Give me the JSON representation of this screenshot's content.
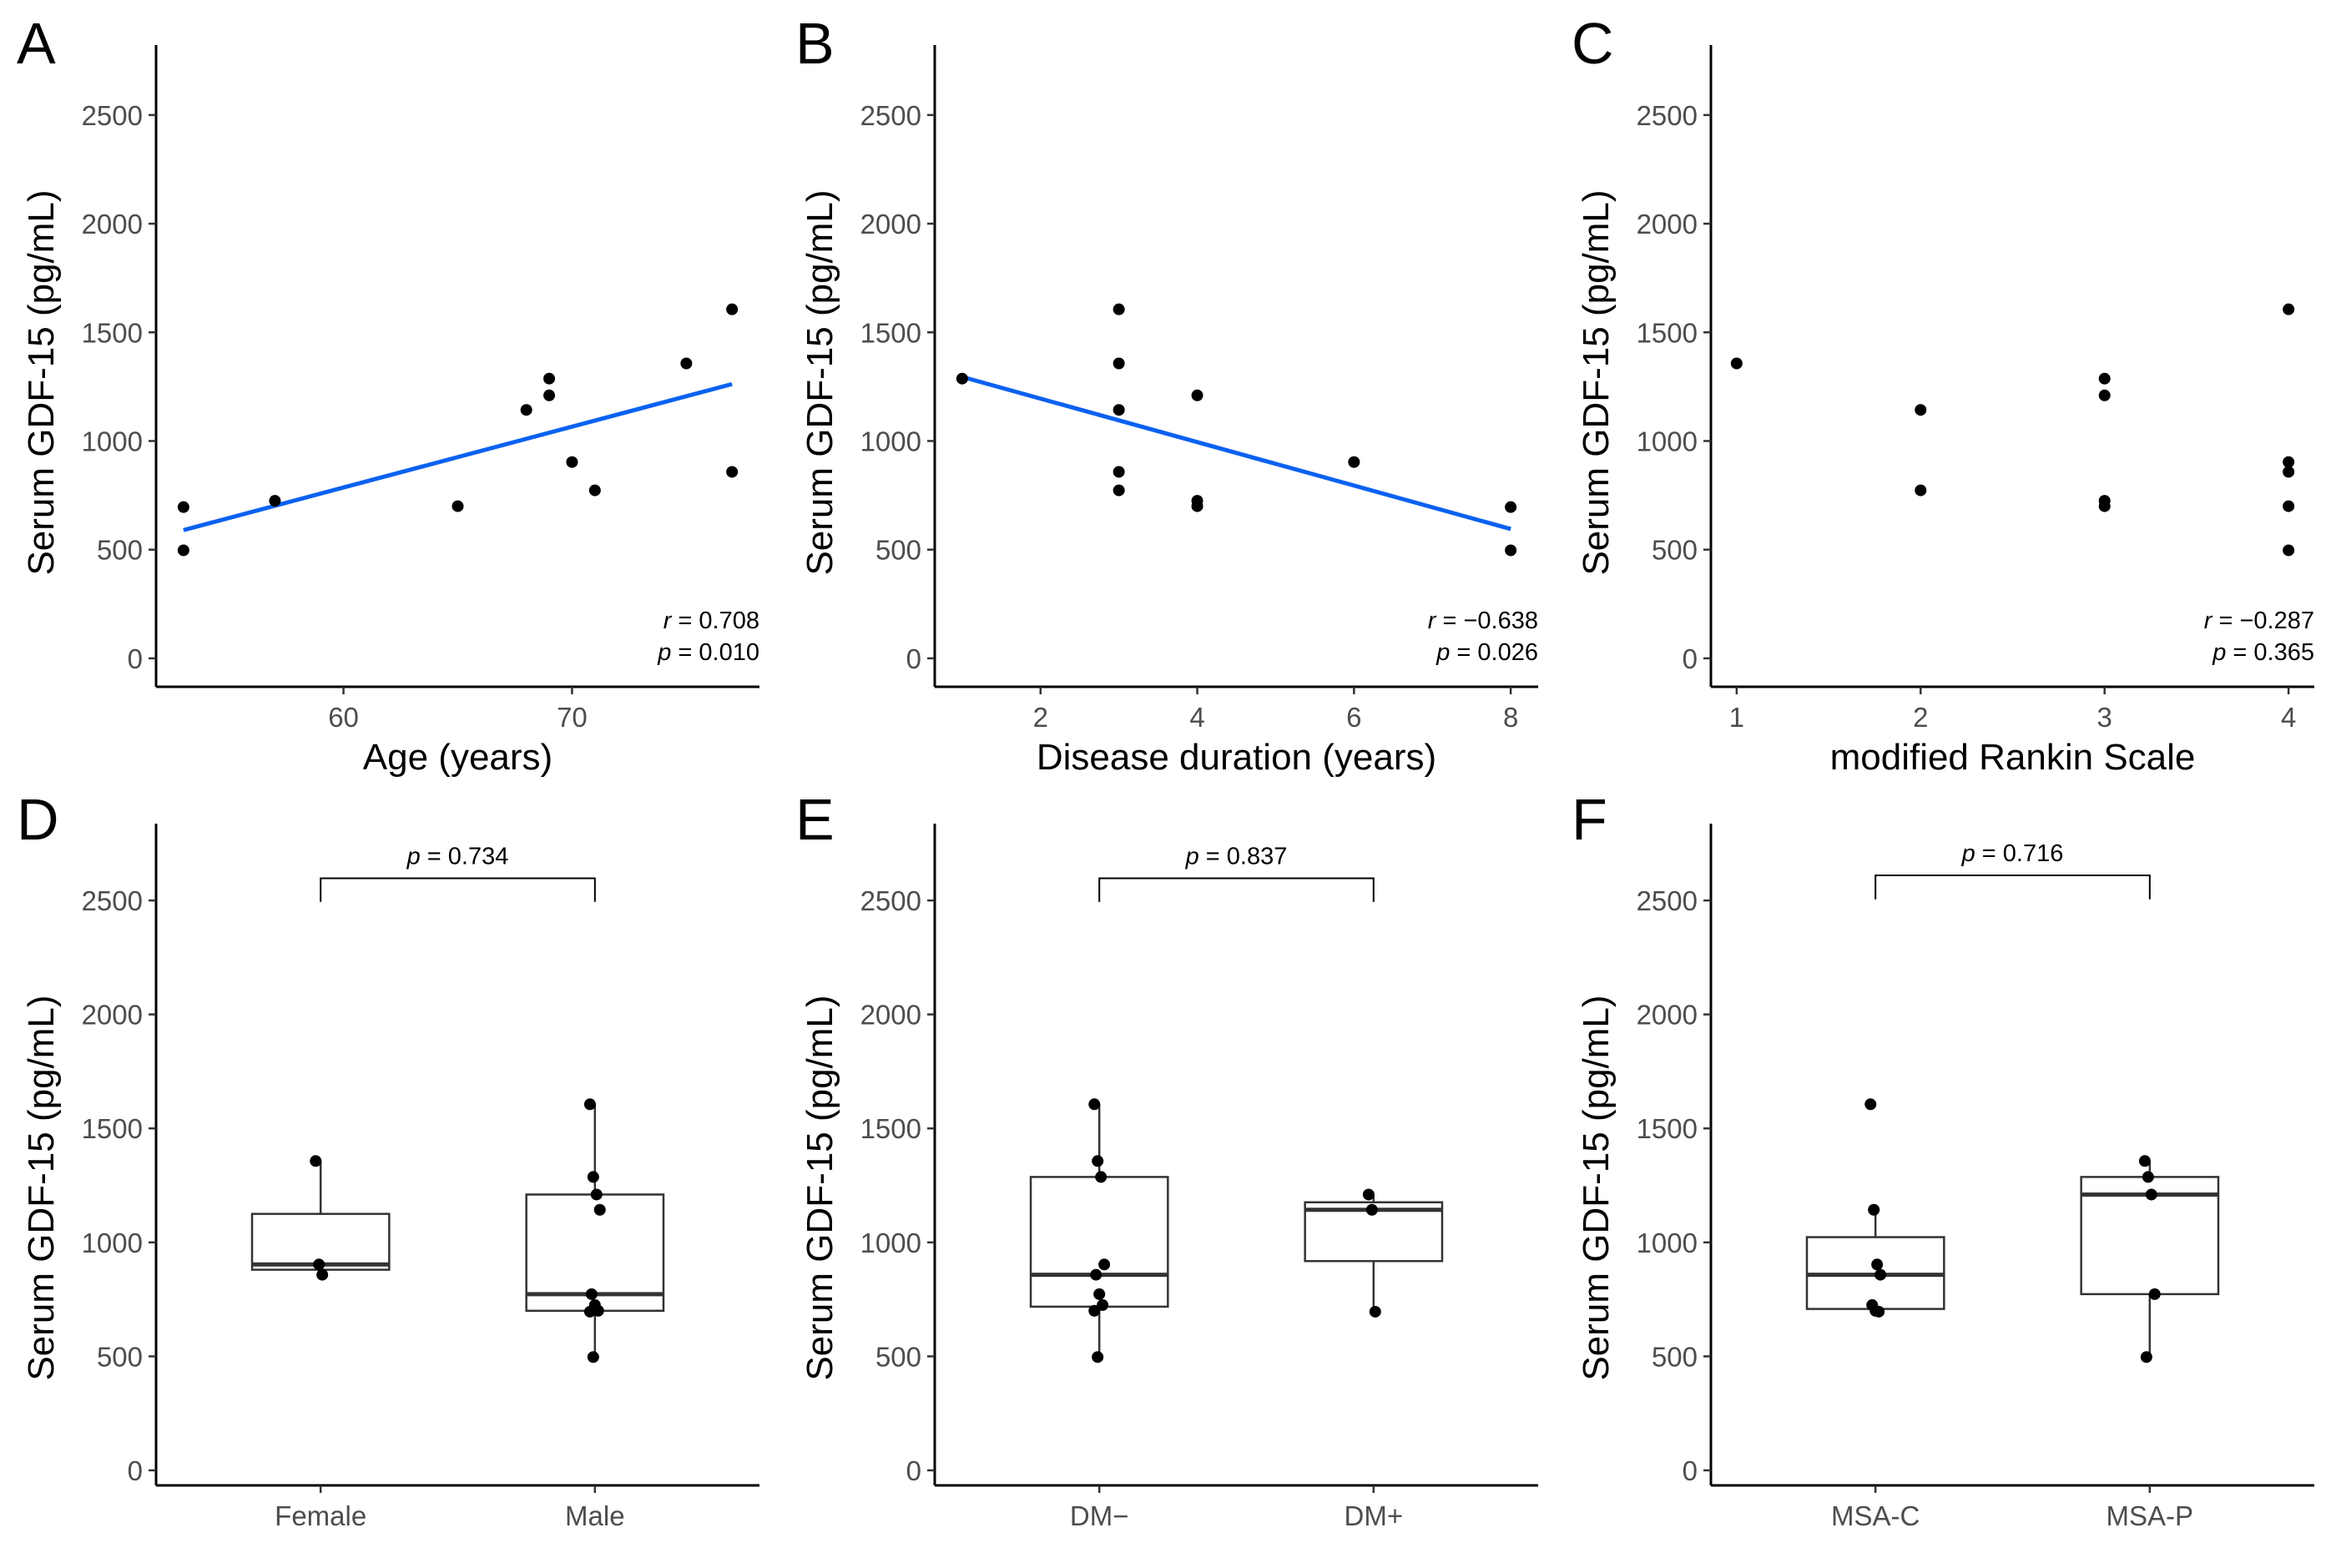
{
  "chart_data": [
    {
      "panel": "A",
      "type": "scatter",
      "xlabel": "Age (years)",
      "ylabel": "Serum GDF-15 (pg/mL)",
      "xlim": [
        51.8,
        78.2
      ],
      "ylim": [
        -131,
        2822
      ],
      "xticks": [
        60,
        70
      ],
      "yticks": [
        0,
        500,
        1000,
        1500,
        2000,
        2500
      ],
      "points": [
        [
          53,
          696
        ],
        [
          53,
          497
        ],
        [
          57,
          725
        ],
        [
          65,
          700
        ],
        [
          68,
          1143
        ],
        [
          69,
          1287
        ],
        [
          69,
          1210
        ],
        [
          70,
          903
        ],
        [
          71,
          773
        ],
        [
          75,
          1357
        ],
        [
          77,
          1606
        ],
        [
          77,
          858
        ]
      ],
      "fit": [
        [
          53,
          590
        ],
        [
          77,
          1262
        ]
      ],
      "annotation": {
        "r_label": "r",
        "r_value": " = 0.708",
        "p_label": "p",
        "p_value": " = 0.010"
      }
    },
    {
      "panel": "B",
      "type": "scatter",
      "xlabel": "Disease duration (years)",
      "ylabel": "Serum GDF-15 (pg/mL)",
      "xlim": [
        0.65,
        8.35
      ],
      "ylim": [
        -131,
        2822
      ],
      "xticks": [
        2,
        4,
        6,
        8
      ],
      "yticks": [
        0,
        500,
        1000,
        1500,
        2000,
        2500
      ],
      "points": [
        [
          1,
          1287
        ],
        [
          3,
          1606
        ],
        [
          3,
          1357
        ],
        [
          3,
          1143
        ],
        [
          3,
          858
        ],
        [
          3,
          773
        ],
        [
          4,
          1210
        ],
        [
          4,
          725
        ],
        [
          4,
          700
        ],
        [
          6,
          903
        ],
        [
          8,
          696
        ],
        [
          8,
          497
        ]
      ],
      "fit": [
        [
          1,
          1295
        ],
        [
          8,
          595
        ]
      ],
      "annotation": {
        "r_label": "r",
        "r_value": " = −0.638",
        "p_label": "p",
        "p_value": " = 0.026"
      }
    },
    {
      "panel": "C",
      "type": "scatter",
      "xlabel": "modified Rankin Scale",
      "ylabel": "Serum GDF-15 (pg/mL)",
      "xlim": [
        0.86,
        4.14
      ],
      "ylim": [
        -131,
        2822
      ],
      "xticks": [
        1,
        2,
        3,
        4
      ],
      "yticks": [
        0,
        500,
        1000,
        1500,
        2000,
        2500
      ],
      "points": [
        [
          1,
          1357
        ],
        [
          2,
          1143
        ],
        [
          2,
          773
        ],
        [
          3,
          1287
        ],
        [
          3,
          1210
        ],
        [
          3,
          725
        ],
        [
          3,
          700
        ],
        [
          4,
          1606
        ],
        [
          4,
          903
        ],
        [
          4,
          858
        ],
        [
          4,
          700
        ],
        [
          4,
          497
        ]
      ],
      "annotation": {
        "r_label": "r",
        "r_value": " = −0.287",
        "p_label": "p",
        "p_value": " = 0.365"
      }
    },
    {
      "panel": "D",
      "type": "box",
      "ylabel": "Serum GDF-15 (pg/mL)",
      "ylim": [
        -66,
        2837
      ],
      "yticks": [
        0,
        500,
        1000,
        1500,
        2000,
        2500
      ],
      "categories": [
        "Female",
        "Male"
      ],
      "groups": [
        {
          "q1": 880,
          "median": 903,
          "q3": 1125,
          "whisker_low": 858,
          "whisker_high": 1357,
          "points": [
            1357,
            903,
            858
          ]
        },
        {
          "q1": 700,
          "median": 773,
          "q3": 1210,
          "whisker_low": 497,
          "whisker_high": 1606,
          "points": [
            1606,
            1287,
            1210,
            1143,
            773,
            725,
            700,
            696,
            497
          ]
        }
      ],
      "comparison": {
        "p_label": "p",
        "p_value": " = 0.734",
        "bracket_top": 2597,
        "bracket_bottom": 2494
      }
    },
    {
      "panel": "E",
      "type": "box",
      "ylabel": "Serum GDF-15 (pg/mL)",
      "ylim": [
        -66,
        2837
      ],
      "yticks": [
        0,
        500,
        1000,
        1500,
        2000,
        2500
      ],
      "categories": [
        "DM−",
        "DM+"
      ],
      "groups": [
        {
          "q1": 718,
          "median": 858,
          "q3": 1287,
          "whisker_low": 497,
          "whisker_high": 1606,
          "points": [
            1606,
            1357,
            1287,
            903,
            858,
            773,
            725,
            700,
            497
          ]
        },
        {
          "q1": 918,
          "median": 1143,
          "q3": 1176,
          "whisker_low": 696,
          "whisker_high": 1210,
          "points": [
            1210,
            1143,
            696
          ]
        }
      ],
      "comparison": {
        "p_label": "p",
        "p_value": " = 0.837",
        "bracket_top": 2597,
        "bracket_bottom": 2494
      }
    },
    {
      "panel": "F",
      "type": "box",
      "ylabel": "Serum GDF-15 (pg/mL)",
      "ylim": [
        -66,
        2837
      ],
      "yticks": [
        0,
        500,
        1000,
        1500,
        2000,
        2500
      ],
      "categories": [
        "MSA-C",
        "MSA-P"
      ],
      "groups": [
        {
          "q1": 708,
          "median": 858,
          "q3": 1023,
          "whisker_low": 696,
          "whisker_high": 1143,
          "points": [
            1606,
            1143,
            903,
            858,
            725,
            700,
            696
          ]
        },
        {
          "q1": 773,
          "median": 1210,
          "q3": 1287,
          "whisker_low": 497,
          "whisker_high": 1357,
          "points": [
            1357,
            1287,
            1210,
            773,
            497
          ]
        }
      ],
      "comparison": {
        "p_label": "p",
        "p_value": " = 0.716",
        "bracket_top": 2610,
        "bracket_bottom": 2505
      }
    }
  ],
  "colors": {
    "fit_line": "#0b62f0",
    "points": "#000000",
    "box": "#333333",
    "tick_text": "#4d4d4d"
  }
}
